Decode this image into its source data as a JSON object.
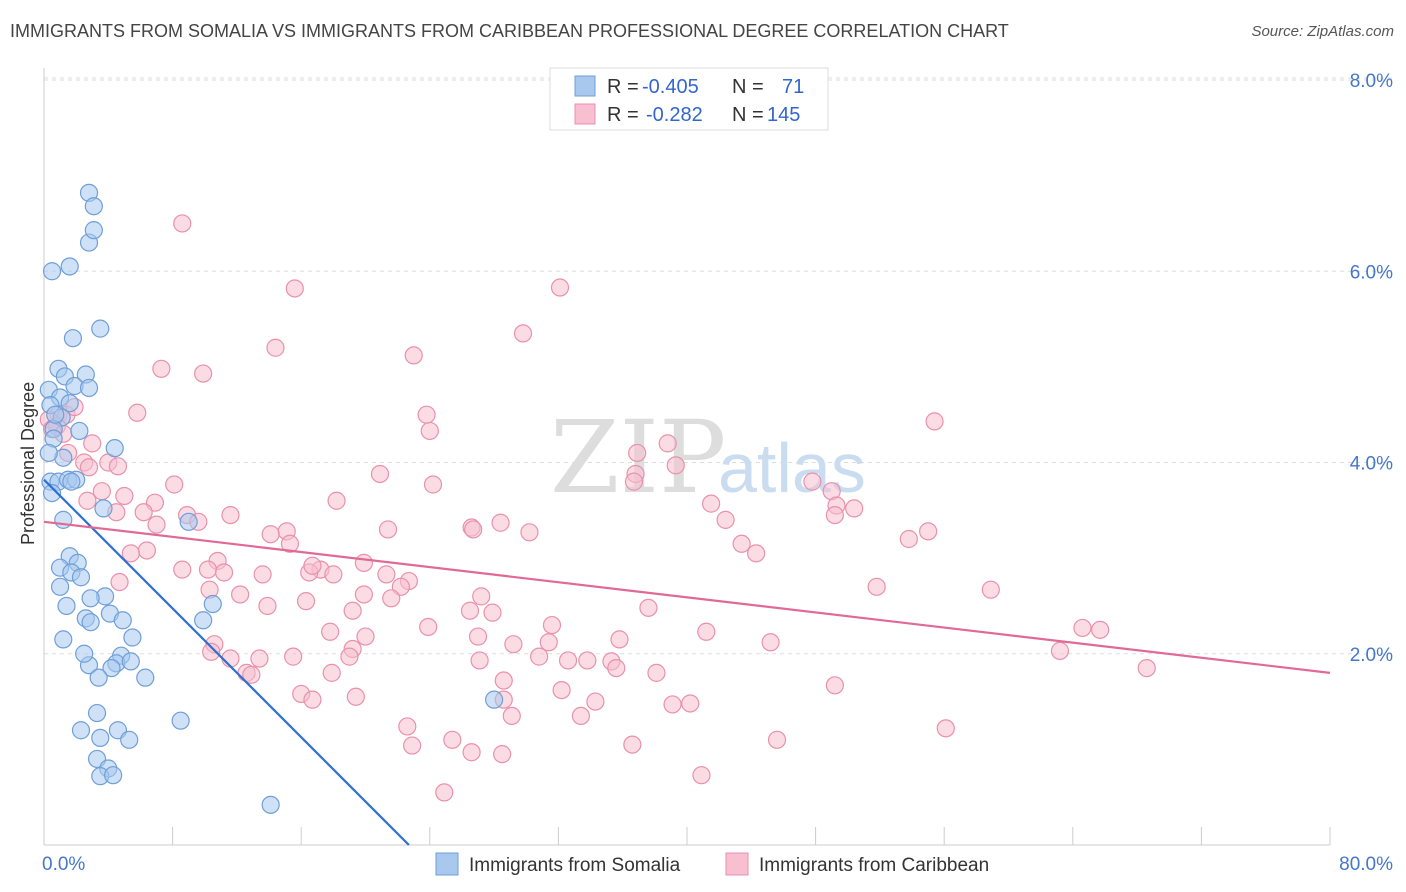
{
  "title": "IMMIGRANTS FROM SOMALIA VS IMMIGRANTS FROM CARIBBEAN PROFESSIONAL DEGREE CORRELATION CHART",
  "source": "Source: ZipAtlas.com",
  "watermark": {
    "zip": "ZIP",
    "atlas": "atlas"
  },
  "legend": {
    "rows": [
      {
        "r_label": "R =",
        "r_value": "-0.405",
        "n_label": "N =",
        "n_value": "71"
      },
      {
        "r_label": "R =",
        "r_value": "-0.282",
        "n_label": "N =",
        "n_value": "145"
      }
    ]
  },
  "colors": {
    "somalia_fill": "#a8c8ee",
    "somalia_stroke": "#6f9fd8",
    "somalia_line": "#2f6fd0",
    "caribbean_fill": "#f7bfd0",
    "caribbean_stroke": "#e991ad",
    "caribbean_line": "#e06a95",
    "tick": "#4477cc",
    "grid": "#dddddd"
  },
  "chart_data": {
    "type": "scatter",
    "title": "IMMIGRANTS FROM SOMALIA VS IMMIGRANTS FROM CARIBBEAN PROFESSIONAL DEGREE CORRELATION CHART",
    "xlabel": "",
    "ylabel": "Professional Degree",
    "xlim": [
      0,
      80
    ],
    "ylim": [
      0,
      8
    ],
    "x_tick_labels": [
      "0.0%",
      "80.0%"
    ],
    "y_ticks": [
      2,
      4,
      6,
      8
    ],
    "y_tick_labels": [
      "2.0%",
      "4.0%",
      "6.0%",
      "8.0%"
    ],
    "series": [
      {
        "name": "Immigrants from Somalia",
        "R": -0.405,
        "N": 71,
        "trend": {
          "x0": 0,
          "y0": 3.82,
          "x1": 22.7,
          "y1": 0.0
        },
        "points": [
          [
            0.5,
            6.0
          ],
          [
            1.6,
            6.05
          ],
          [
            2.8,
            6.3
          ],
          [
            3.1,
            6.43
          ],
          [
            2.8,
            6.82
          ],
          [
            3.1,
            6.68
          ],
          [
            1.8,
            5.3
          ],
          [
            3.5,
            5.4
          ],
          [
            0.9,
            4.98
          ],
          [
            1.3,
            4.9
          ],
          [
            2.6,
            4.92
          ],
          [
            1.9,
            4.8
          ],
          [
            2.8,
            4.78
          ],
          [
            0.3,
            4.76
          ],
          [
            1.0,
            4.68
          ],
          [
            0.4,
            4.6
          ],
          [
            1.6,
            4.62
          ],
          [
            1.1,
            4.47
          ],
          [
            0.6,
            4.35
          ],
          [
            2.2,
            4.33
          ],
          [
            0.6,
            4.25
          ],
          [
            1.2,
            4.05
          ],
          [
            0.3,
            4.1
          ],
          [
            4.4,
            4.15
          ],
          [
            0.4,
            3.8
          ],
          [
            0.9,
            3.8
          ],
          [
            1.5,
            3.82
          ],
          [
            2.0,
            3.82
          ],
          [
            0.5,
            3.68
          ],
          [
            3.7,
            3.52
          ],
          [
            1.2,
            3.4
          ],
          [
            9.0,
            3.38
          ],
          [
            1.6,
            3.02
          ],
          [
            1.0,
            2.9
          ],
          [
            2.1,
            2.95
          ],
          [
            1.7,
            2.85
          ],
          [
            2.3,
            2.8
          ],
          [
            1.0,
            2.7
          ],
          [
            3.8,
            2.6
          ],
          [
            2.9,
            2.58
          ],
          [
            1.4,
            2.5
          ],
          [
            10.5,
            2.52
          ],
          [
            4.1,
            2.42
          ],
          [
            2.6,
            2.37
          ],
          [
            2.9,
            2.33
          ],
          [
            4.9,
            2.35
          ],
          [
            1.2,
            2.15
          ],
          [
            5.5,
            2.17
          ],
          [
            9.9,
            2.35
          ],
          [
            4.8,
            1.98
          ],
          [
            2.8,
            1.88
          ],
          [
            4.5,
            1.9
          ],
          [
            4.2,
            1.85
          ],
          [
            6.3,
            1.75
          ],
          [
            3.4,
            1.75
          ],
          [
            5.4,
            1.92
          ],
          [
            28.0,
            1.52
          ],
          [
            3.3,
            1.38
          ],
          [
            8.5,
            1.3
          ],
          [
            2.3,
            1.2
          ],
          [
            4.6,
            1.2
          ],
          [
            5.3,
            1.1
          ],
          [
            3.5,
            1.12
          ],
          [
            3.3,
            0.9
          ],
          [
            4.0,
            0.8
          ],
          [
            3.5,
            0.72
          ],
          [
            4.3,
            0.73
          ],
          [
            14.1,
            0.42
          ],
          [
            1.7,
            3.8
          ],
          [
            2.5,
            2.0
          ],
          [
            0.7,
            4.5
          ]
        ]
      },
      {
        "name": "Immigrants from Caribbean",
        "R": -0.282,
        "N": 145,
        "trend": {
          "x0": 0,
          "y0": 3.38,
          "x1": 80,
          "y1": 1.8
        },
        "points": [
          [
            8.6,
            6.5
          ],
          [
            15.6,
            5.82
          ],
          [
            32.1,
            5.83
          ],
          [
            29.8,
            5.35
          ],
          [
            14.4,
            5.2
          ],
          [
            23.0,
            5.12
          ],
          [
            7.3,
            4.98
          ],
          [
            9.9,
            4.93
          ],
          [
            0.9,
            4.5
          ],
          [
            1.4,
            4.5
          ],
          [
            1.9,
            4.58
          ],
          [
            5.8,
            4.52
          ],
          [
            0.3,
            4.45
          ],
          [
            0.8,
            4.38
          ],
          [
            0.5,
            4.35
          ],
          [
            1.2,
            4.3
          ],
          [
            24.0,
            4.33
          ],
          [
            55.4,
            4.43
          ],
          [
            3.0,
            4.2
          ],
          [
            1.5,
            4.1
          ],
          [
            4.0,
            4.0
          ],
          [
            2.5,
            4.0
          ],
          [
            2.8,
            3.95
          ],
          [
            4.6,
            3.96
          ],
          [
            36.9,
            4.1
          ],
          [
            38.8,
            4.2
          ],
          [
            23.8,
            4.5
          ],
          [
            20.9,
            3.88
          ],
          [
            36.8,
            3.88
          ],
          [
            36.7,
            3.8
          ],
          [
            39.3,
            3.97
          ],
          [
            47.8,
            3.8
          ],
          [
            24.2,
            3.77
          ],
          [
            8.1,
            3.77
          ],
          [
            5.0,
            3.65
          ],
          [
            3.6,
            3.7
          ],
          [
            18.2,
            3.6
          ],
          [
            6.9,
            3.58
          ],
          [
            2.7,
            3.6
          ],
          [
            49.0,
            3.7
          ],
          [
            49.3,
            3.55
          ],
          [
            49.2,
            3.45
          ],
          [
            41.5,
            3.57
          ],
          [
            50.4,
            3.52
          ],
          [
            6.2,
            3.48
          ],
          [
            4.5,
            3.48
          ],
          [
            8.9,
            3.45
          ],
          [
            11.6,
            3.45
          ],
          [
            7.0,
            3.35
          ],
          [
            9.6,
            3.38
          ],
          [
            26.6,
            3.32
          ],
          [
            26.7,
            3.3
          ],
          [
            28.4,
            3.37
          ],
          [
            21.4,
            3.3
          ],
          [
            15.1,
            3.28
          ],
          [
            14.1,
            3.25
          ],
          [
            30.2,
            3.27
          ],
          [
            55.0,
            3.28
          ],
          [
            53.8,
            3.2
          ],
          [
            42.4,
            3.4
          ],
          [
            43.4,
            3.15
          ],
          [
            6.4,
            3.08
          ],
          [
            5.4,
            3.05
          ],
          [
            15.3,
            3.15
          ],
          [
            44.3,
            3.05
          ],
          [
            10.8,
            2.97
          ],
          [
            19.9,
            2.95
          ],
          [
            17.2,
            2.88
          ],
          [
            16.5,
            2.85
          ],
          [
            16.7,
            2.92
          ],
          [
            10.2,
            2.88
          ],
          [
            13.6,
            2.83
          ],
          [
            8.6,
            2.88
          ],
          [
            11.2,
            2.85
          ],
          [
            21.3,
            2.83
          ],
          [
            22.7,
            2.76
          ],
          [
            18.0,
            2.83
          ],
          [
            4.7,
            2.75
          ],
          [
            10.3,
            2.67
          ],
          [
            12.2,
            2.62
          ],
          [
            19.9,
            2.62
          ],
          [
            22.2,
            2.7
          ],
          [
            21.6,
            2.58
          ],
          [
            51.8,
            2.7
          ],
          [
            58.9,
            2.67
          ],
          [
            16.3,
            2.55
          ],
          [
            13.9,
            2.5
          ],
          [
            19.2,
            2.45
          ],
          [
            27.2,
            2.6
          ],
          [
            26.5,
            2.45
          ],
          [
            37.6,
            2.48
          ],
          [
            27.9,
            2.43
          ],
          [
            31.6,
            2.3
          ],
          [
            23.9,
            2.28
          ],
          [
            17.8,
            2.23
          ],
          [
            27.0,
            2.18
          ],
          [
            35.8,
            2.15
          ],
          [
            41.2,
            2.23
          ],
          [
            64.6,
            2.27
          ],
          [
            65.7,
            2.25
          ],
          [
            20.0,
            2.18
          ],
          [
            29.2,
            2.1
          ],
          [
            31.4,
            2.12
          ],
          [
            45.2,
            2.12
          ],
          [
            19.2,
            2.05
          ],
          [
            10.6,
            2.1
          ],
          [
            10.4,
            2.02
          ],
          [
            13.4,
            1.95
          ],
          [
            11.6,
            1.95
          ],
          [
            15.5,
            1.97
          ],
          [
            27.1,
            1.93
          ],
          [
            19.0,
            1.97
          ],
          [
            30.8,
            1.97
          ],
          [
            32.6,
            1.93
          ],
          [
            33.8,
            1.93
          ],
          [
            35.3,
            1.92
          ],
          [
            35.6,
            1.85
          ],
          [
            38.1,
            1.8
          ],
          [
            12.6,
            1.8
          ],
          [
            12.9,
            1.78
          ],
          [
            17.9,
            1.8
          ],
          [
            28.6,
            1.72
          ],
          [
            63.2,
            2.03
          ],
          [
            68.6,
            1.85
          ],
          [
            32.2,
            1.62
          ],
          [
            49.2,
            1.67
          ],
          [
            16.0,
            1.58
          ],
          [
            16.7,
            1.52
          ],
          [
            19.4,
            1.55
          ],
          [
            28.6,
            1.52
          ],
          [
            34.3,
            1.5
          ],
          [
            39.1,
            1.47
          ],
          [
            40.2,
            1.48
          ],
          [
            29.1,
            1.35
          ],
          [
            33.4,
            1.35
          ],
          [
            22.6,
            1.24
          ],
          [
            56.1,
            1.22
          ],
          [
            45.6,
            1.1
          ],
          [
            36.6,
            1.05
          ],
          [
            25.4,
            1.1
          ],
          [
            22.9,
            1.04
          ],
          [
            26.6,
            0.97
          ],
          [
            28.5,
            0.95
          ],
          [
            40.9,
            0.73
          ],
          [
            24.9,
            0.55
          ]
        ]
      }
    ]
  },
  "bottom_legend": [
    "Immigrants from Somalia",
    "Immigrants from Caribbean"
  ],
  "ylabel": "Professional Degree"
}
